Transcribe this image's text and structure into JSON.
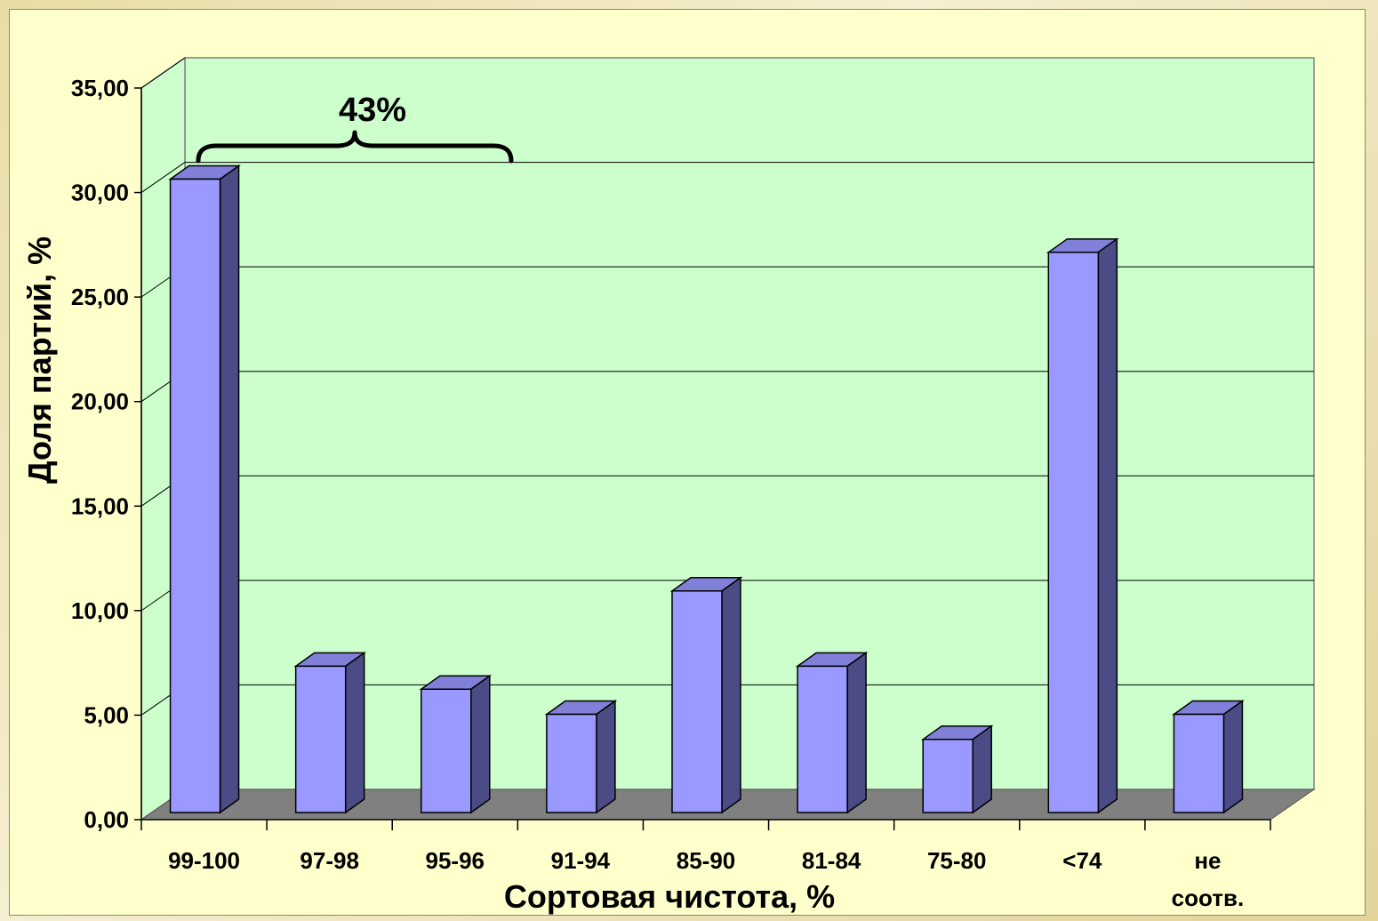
{
  "chart_data": {
    "type": "bar",
    "categories": [
      "99-100",
      "97-98",
      "95-96",
      "91-94",
      "85-90",
      "81-84",
      "75-80",
      "<74",
      [
        "не",
        "соотв."
      ]
    ],
    "values": [
      30.3,
      7.0,
      5.9,
      4.7,
      10.6,
      7.0,
      3.5,
      26.8,
      4.7
    ],
    "xlabel": "Сортовая чистота, %",
    "ylabel": "Доля партий, %",
    "ylim": [
      0,
      35
    ],
    "yticks": [
      "0,00",
      "5,00",
      "10,00",
      "15,00",
      "20,00",
      "25,00",
      "30,00",
      "35,00"
    ],
    "grid": true,
    "annotation": {
      "text": "43%",
      "spans_categories": [
        "99-100",
        "97-98",
        "95-96"
      ]
    },
    "colors": {
      "bar_front": "#9999ff",
      "bar_side": "#4b4b85",
      "bar_top": "#8080d8",
      "wall": "#ccffcc",
      "floor": "#808080",
      "frame": "#ffffcc"
    }
  }
}
